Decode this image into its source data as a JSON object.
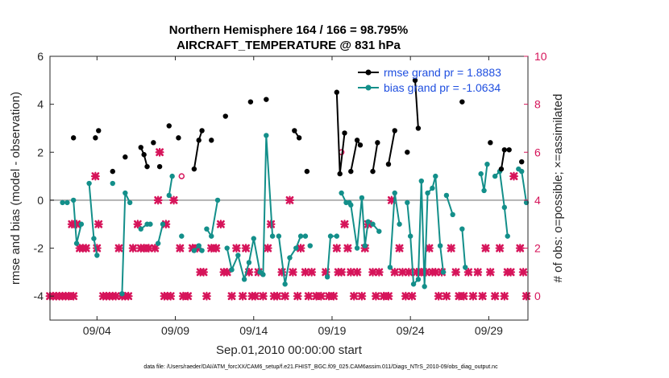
{
  "chart_data": {
    "type": "line",
    "title": "Northern Hemisphere 164 / 166 = 98.795%",
    "subtitle": "AIRCRAFT_TEMPERATURE @ 831 hPa",
    "xlabel": "Sep.01,2010 00:00:00 start",
    "ylabel": "rmse and bias (model - observation)",
    "y2label": "# of obs: o=possible; ×=assimilated",
    "xlim": [
      1,
      31.5
    ],
    "ylim": [
      -5,
      6
    ],
    "y2lim": [
      -1,
      10
    ],
    "x_ticks": [
      {
        "value": 4,
        "label": "09/04"
      },
      {
        "value": 9,
        "label": "09/09"
      },
      {
        "value": 14,
        "label": "09/14"
      },
      {
        "value": 19,
        "label": "09/19"
      },
      {
        "value": 24,
        "label": "09/24"
      },
      {
        "value": 29,
        "label": "09/29"
      }
    ],
    "y_ticks": [
      -4,
      -2,
      0,
      2,
      4,
      6
    ],
    "y2_ticks": [
      0,
      2,
      4,
      6,
      8,
      10
    ],
    "zero_line": 0,
    "legend_position": "top-right",
    "colors": {
      "rmse": "#000000",
      "bias": "#138f8a",
      "obs": "#d6145a",
      "zero": "#b3b3b3",
      "legend_text": "#1f4fe0",
      "axis": "#262626"
    },
    "series": [
      {
        "name": "rmse grand pr = 1.8883",
        "segments": [
          [
            [
              2.5,
              2.6
            ]
          ],
          [
            [
              3.9,
              2.6
            ]
          ],
          [
            [
              4.1,
              2.9
            ]
          ],
          [
            [
              5.0,
              1.2
            ]
          ],
          [
            [
              5.8,
              1.8
            ]
          ],
          [
            [
              6.8,
              2.2
            ],
            [
              7.0,
              1.9
            ],
            [
              7.2,
              1.4
            ]
          ],
          [
            [
              7.6,
              2.4
            ]
          ],
          [
            [
              8.0,
              1.4
            ]
          ],
          [
            [
              8.6,
              3.1
            ]
          ],
          [
            [
              9.2,
              2.6
            ]
          ],
          [
            [
              10.2,
              1.3
            ],
            [
              10.5,
              2.5
            ],
            [
              10.7,
              2.9
            ]
          ],
          [
            [
              11.3,
              2.5
            ]
          ],
          [
            [
              12.2,
              3.5
            ]
          ],
          [
            [
              13.8,
              4.1
            ]
          ],
          [
            [
              14.8,
              4.2
            ]
          ],
          [
            [
              16.6,
              2.9
            ],
            [
              16.9,
              2.6
            ]
          ],
          [
            [
              17.4,
              1.2
            ]
          ],
          [
            [
              19.3,
              4.5
            ],
            [
              19.5,
              1.1
            ],
            [
              19.8,
              2.8
            ]
          ],
          [
            [
              20.2,
              1.2
            ],
            [
              20.6,
              2.5
            ],
            [
              20.8,
              2.3
            ]
          ],
          [
            [
              21.6,
              1.2
            ],
            [
              21.9,
              2.4
            ]
          ],
          [
            [
              22.6,
              1.5
            ],
            [
              23.0,
              2.9
            ]
          ],
          [
            [
              23.8,
              2.0
            ]
          ],
          [
            [
              24.3,
              5.0
            ],
            [
              24.5,
              3.0
            ]
          ],
          [
            [
              27.3,
              4.1
            ]
          ],
          [
            [
              29.1,
              2.4
            ]
          ],
          [
            [
              29.8,
              1.3
            ],
            [
              30.0,
              2.1
            ],
            [
              30.3,
              2.1
            ]
          ],
          [
            [
              31.1,
              1.6
            ]
          ]
        ]
      },
      {
        "name": "bias grand pr = -1.0634",
        "segments": [
          [
            [
              1.8,
              -0.1
            ],
            [
              2.1,
              -0.1
            ]
          ],
          [
            [
              2.5,
              0.0
            ],
            [
              2.7,
              -1.8
            ],
            [
              3.0,
              -1.0
            ]
          ],
          [
            [
              3.5,
              0.7
            ],
            [
              3.8,
              -1.6
            ],
            [
              4.0,
              -2.3
            ]
          ],
          [
            [
              5.0,
              0.7
            ]
          ],
          [
            [
              5.6,
              -3.9
            ],
            [
              5.8,
              0.3
            ],
            [
              6.1,
              -0.1
            ]
          ],
          [
            [
              6.8,
              -1.2
            ],
            [
              7.2,
              -1.0
            ]
          ],
          [
            [
              7.4,
              -1.0
            ]
          ],
          [
            [
              7.9,
              -1.8
            ],
            [
              8.2,
              -1.0
            ]
          ],
          [
            [
              8.6,
              0.2
            ],
            [
              8.8,
              1.0
            ]
          ],
          [
            [
              9.4,
              -1.5
            ]
          ],
          [
            [
              10.2,
              -2.1
            ],
            [
              10.5,
              -1.9
            ],
            [
              10.7,
              -2.1
            ]
          ],
          [
            [
              11.0,
              -1.2
            ],
            [
              11.3,
              -1.5
            ],
            [
              11.7,
              0.0
            ]
          ],
          [
            [
              12.3,
              -2.0
            ],
            [
              12.6,
              -2.9
            ],
            [
              13.0,
              -2.3
            ],
            [
              13.4,
              -3.3
            ],
            [
              13.7,
              -2.6
            ],
            [
              14.0,
              -1.6
            ],
            [
              14.4,
              -3.0
            ],
            [
              14.6,
              -3.1
            ],
            [
              14.8,
              2.7
            ],
            [
              15.2,
              -1.5
            ]
          ],
          [
            [
              15.6,
              -1.5
            ],
            [
              16.0,
              -3.5
            ],
            [
              16.3,
              -2.4
            ],
            [
              16.7,
              -2.0
            ],
            [
              17.0,
              -1.5
            ],
            [
              17.3,
              -1.5
            ]
          ],
          [
            [
              17.6,
              -1.9
            ]
          ],
          [
            [
              18.7,
              -3.2
            ],
            [
              18.9,
              -1.5
            ],
            [
              19.3,
              -1.5
            ]
          ],
          [
            [
              19.6,
              0.3
            ],
            [
              19.9,
              -0.1
            ],
            [
              20.1,
              -0.1
            ]
          ],
          [
            [
              20.2,
              -0.2
            ],
            [
              20.6,
              -2.0
            ],
            [
              20.9,
              0.1
            ],
            [
              21.1,
              -1.9
            ],
            [
              21.3,
              -0.9
            ]
          ],
          [
            [
              21.6,
              -1.0
            ],
            [
              22.0,
              -1.3
            ]
          ],
          [
            [
              22.7,
              -2.8
            ],
            [
              23.0,
              0.3
            ],
            [
              23.3,
              -1.0
            ]
          ],
          [
            [
              23.8,
              -0.1
            ],
            [
              24.0,
              -1.5
            ],
            [
              24.2,
              -3.5
            ],
            [
              24.5,
              -3.3
            ],
            [
              24.7,
              0.8
            ],
            [
              24.9,
              -3.6
            ],
            [
              25.1,
              0.3
            ],
            [
              25.4,
              0.5
            ],
            [
              25.6,
              1.0
            ],
            [
              25.9,
              -1.9
            ],
            [
              26.1,
              -3.0
            ]
          ],
          [
            [
              26.3,
              0.2
            ],
            [
              26.7,
              -0.6
            ]
          ],
          [
            [
              27.3,
              -1.2
            ],
            [
              27.5,
              -2.8
            ]
          ],
          [
            [
              28.5,
              1.1
            ],
            [
              28.7,
              0.4
            ],
            [
              28.9,
              1.5
            ]
          ],
          [
            [
              29.4,
              1.0
            ],
            [
              29.7,
              1.2
            ],
            [
              30.0,
              -0.3
            ],
            [
              30.2,
              -1.5
            ]
          ],
          [
            [
              30.9,
              1.3
            ],
            [
              31.1,
              1.2
            ],
            [
              31.4,
              -0.1
            ]
          ]
        ]
      }
    ],
    "obs_possible_points": [
      [
        9.4,
        5.0
      ],
      [
        19.6,
        6.0
      ]
    ],
    "obs_assimilated_points": [
      [
        1.0,
        0
      ],
      [
        1.2,
        0
      ],
      [
        1.4,
        0
      ],
      [
        1.6,
        0
      ],
      [
        1.8,
        0
      ],
      [
        2.0,
        0
      ],
      [
        2.2,
        0
      ],
      [
        2.5,
        0
      ],
      [
        2.7,
        3
      ],
      [
        2.9,
        2
      ],
      [
        3.1,
        2
      ],
      [
        3.3,
        2
      ],
      [
        2.4,
        3
      ],
      [
        3.9,
        5
      ],
      [
        4.1,
        3
      ],
      [
        4.0,
        2
      ],
      [
        4.4,
        0
      ],
      [
        4.6,
        0
      ],
      [
        4.8,
        0
      ],
      [
        5.0,
        0
      ],
      [
        5.2,
        0
      ],
      [
        5.4,
        2
      ],
      [
        5.6,
        0
      ],
      [
        5.8,
        0
      ],
      [
        6.0,
        0
      ],
      [
        6.3,
        2
      ],
      [
        6.6,
        3
      ],
      [
        6.8,
        2
      ],
      [
        7.0,
        2
      ],
      [
        7.3,
        2
      ],
      [
        7.7,
        2
      ],
      [
        8.0,
        6
      ],
      [
        7.9,
        4
      ],
      [
        8.3,
        0
      ],
      [
        8.5,
        0
      ],
      [
        8.7,
        0
      ],
      [
        8.4,
        3
      ],
      [
        8.9,
        4
      ],
      [
        9.3,
        2
      ],
      [
        9.5,
        0
      ],
      [
        9.8,
        0
      ],
      [
        10.1,
        2
      ],
      [
        10.4,
        2
      ],
      [
        10.6,
        1
      ],
      [
        10.8,
        1
      ],
      [
        11.0,
        0
      ],
      [
        11.3,
        2
      ],
      [
        11.6,
        2
      ],
      [
        11.9,
        3
      ],
      [
        12.1,
        1
      ],
      [
        12.3,
        1
      ],
      [
        12.6,
        0
      ],
      [
        12.9,
        2
      ],
      [
        13.3,
        0
      ],
      [
        13.5,
        2
      ],
      [
        13.7,
        1
      ],
      [
        13.9,
        0
      ],
      [
        14.1,
        0
      ],
      [
        14.3,
        1
      ],
      [
        14.6,
        0
      ],
      [
        14.9,
        2
      ],
      [
        15.1,
        3
      ],
      [
        15.3,
        0
      ],
      [
        15.5,
        0
      ],
      [
        15.8,
        1
      ],
      [
        16.0,
        0
      ],
      [
        16.3,
        4
      ],
      [
        16.5,
        1
      ],
      [
        16.8,
        0
      ],
      [
        17.0,
        2
      ],
      [
        17.3,
        1
      ],
      [
        17.5,
        0
      ],
      [
        17.7,
        1
      ],
      [
        18.0,
        0
      ],
      [
        18.3,
        0
      ],
      [
        18.6,
        1
      ],
      [
        18.8,
        0
      ],
      [
        19.1,
        0
      ],
      [
        19.3,
        2
      ],
      [
        19.4,
        1
      ],
      [
        19.6,
        1
      ],
      [
        19.8,
        3
      ],
      [
        20.0,
        2
      ],
      [
        20.2,
        1
      ],
      [
        20.4,
        0
      ],
      [
        20.6,
        1
      ],
      [
        20.9,
        0
      ],
      [
        21.1,
        2
      ],
      [
        21.3,
        3
      ],
      [
        21.6,
        1
      ],
      [
        21.8,
        0
      ],
      [
        22.0,
        1
      ],
      [
        22.3,
        0
      ],
      [
        22.6,
        0
      ],
      [
        22.8,
        4
      ],
      [
        23.0,
        1
      ],
      [
        23.3,
        2
      ],
      [
        23.5,
        1
      ],
      [
        23.7,
        0
      ],
      [
        23.9,
        1
      ],
      [
        24.1,
        0
      ],
      [
        24.4,
        1
      ],
      [
        24.7,
        1
      ],
      [
        25.0,
        1
      ],
      [
        25.2,
        2
      ],
      [
        25.4,
        1
      ],
      [
        25.6,
        1
      ],
      [
        25.8,
        0
      ],
      [
        26.0,
        1
      ],
      [
        26.3,
        0
      ],
      [
        26.6,
        2
      ],
      [
        26.9,
        1
      ],
      [
        27.1,
        0
      ],
      [
        27.4,
        0
      ],
      [
        27.7,
        1
      ],
      [
        28.0,
        0
      ],
      [
        28.3,
        1
      ],
      [
        28.6,
        0
      ],
      [
        28.8,
        2
      ],
      [
        29.1,
        1
      ],
      [
        29.4,
        0
      ],
      [
        29.7,
        2
      ],
      [
        30.0,
        0
      ],
      [
        30.2,
        1
      ],
      [
        30.4,
        1
      ],
      [
        30.6,
        5
      ],
      [
        31.0,
        2
      ],
      [
        31.2,
        1
      ],
      [
        31.4,
        0
      ]
    ]
  },
  "footer": "data file: /Users/raeder/DAI/ATM_forcXX/CAM6_setup/f.e21.FHIST_BGC.f09_025.CAM6assim.011/Diags_NTrS_2010-09/obs_diag_output.nc"
}
